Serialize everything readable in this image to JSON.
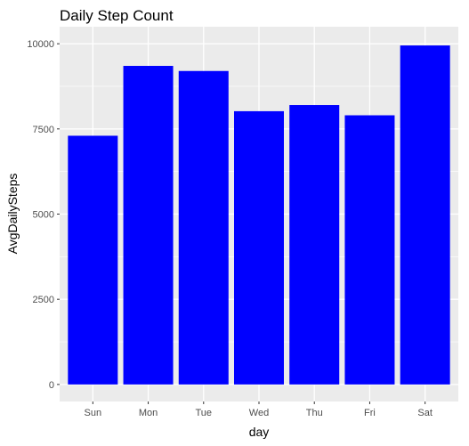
{
  "chart_data": {
    "type": "bar",
    "title": "Daily Step Count",
    "xlabel": "day",
    "ylabel": "AvgDailySteps",
    "categories": [
      "Sun",
      "Mon",
      "Tue",
      "Wed",
      "Thu",
      "Fri",
      "Sat"
    ],
    "values": [
      7300,
      9350,
      9200,
      8020,
      8200,
      7900,
      9950
    ],
    "yticks": [
      0,
      2500,
      5000,
      7500,
      10000
    ],
    "ylim": [
      -500,
      10500
    ],
    "grid": true,
    "legend": "none",
    "bar_color": "#0000FF",
    "panel_color": "#EBEBEB",
    "gridline_color": "#FFFFFF"
  }
}
